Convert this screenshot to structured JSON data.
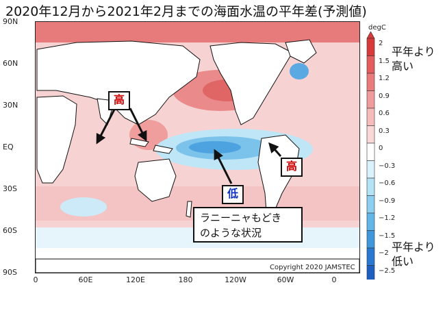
{
  "title": "2020年12月から2021年2月までの海面水温の平年差(予測値)",
  "axes": {
    "lat_labels": [
      "90N",
      "60N",
      "30N",
      "EQ",
      "30S",
      "60S",
      "90S"
    ],
    "lon_labels": [
      "0",
      "60E",
      "120E",
      "180",
      "120W",
      "60W",
      "0"
    ]
  },
  "colorbar": {
    "unit": "degC",
    "levels": [
      "2",
      "1.5",
      "1.2",
      "0.9",
      "0.6",
      "0.3",
      "0",
      "−0.3",
      "−0.6",
      "−0.9",
      "−1.2",
      "−1.5",
      "−2",
      "−2.5"
    ],
    "colors": [
      "#d83a3a",
      "#e45c5c",
      "#eb7b7b",
      "#f19c9c",
      "#f6bcbc",
      "#fad8d8",
      "#ffffff",
      "#d9f2fb",
      "#b4e3f6",
      "#8ccff0",
      "#62b6e8",
      "#3f98de",
      "#2a78d2",
      "#1e5fc4"
    ],
    "high_note": [
      "平年より",
      "高い"
    ],
    "low_note": [
      "平年より",
      "低い"
    ]
  },
  "callouts": {
    "high_indian": "高",
    "high_southamerica": "高",
    "low_pacific": "低"
  },
  "caption": [
    "ラニーニャもどき",
    "のような状況"
  ],
  "copyright": "Copyright  2020  JAMSTEC"
}
